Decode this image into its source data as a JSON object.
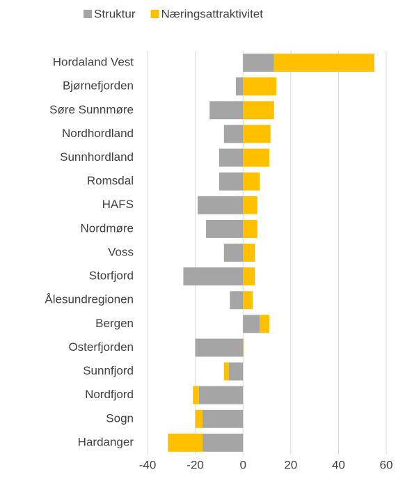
{
  "chart_data": {
    "type": "bar",
    "orientation": "horizontal",
    "stacked": true,
    "categories": [
      "Hordaland Vest",
      "Bjørnefjorden",
      "Søre Sunnmøre",
      "Nordhordland",
      "Sunnhordland",
      "Romsdal",
      "HAFS",
      "Nordmøre",
      "Voss",
      "Storfjord",
      "Ålesundregionen",
      "Bergen",
      "Osterfjorden",
      "Sunnfjord",
      "Nordfjord",
      "Sogn",
      "Hardanger"
    ],
    "series": [
      {
        "name": "Struktur",
        "color": "#a5a5a5",
        "values": [
          13,
          -3,
          -14,
          -8,
          -10,
          -10,
          -19,
          -15.5,
          -8,
          -25,
          -5.5,
          7,
          -20,
          -6,
          -18.5,
          -17,
          -17
        ]
      },
      {
        "name": "Næringsattraktivitet",
        "color": "#ffc000",
        "values": [
          42,
          14,
          13,
          11.5,
          11,
          7,
          6,
          6,
          5,
          5,
          4,
          4,
          0.3,
          -2,
          -2.5,
          -3,
          -14.5
        ]
      }
    ],
    "xlim": [
      -40,
      60
    ],
    "xticks": [
      -40,
      -20,
      0,
      20,
      40,
      60
    ],
    "grid": true,
    "legend": "top"
  }
}
